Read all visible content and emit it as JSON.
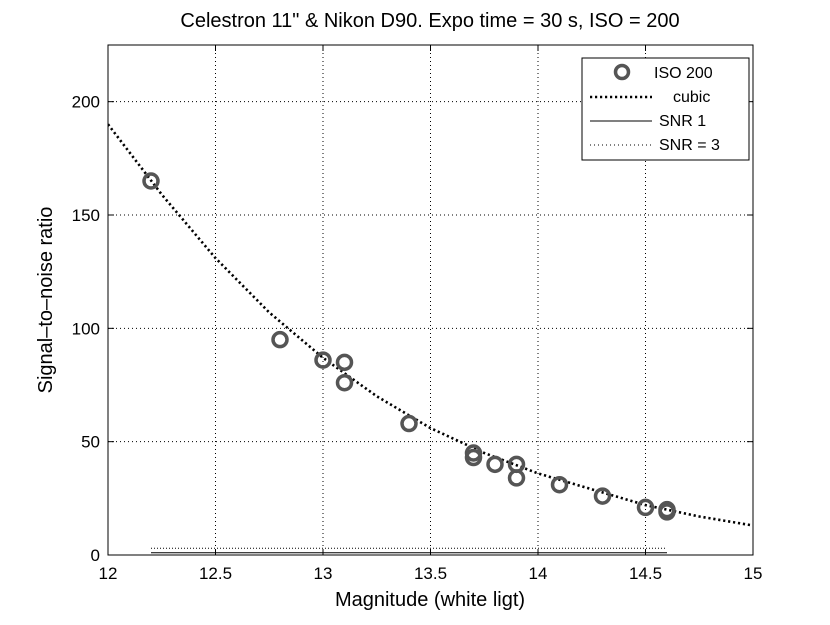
{
  "chart_data": {
    "type": "scatter",
    "title": "Celestron 11\" & Nikon D90. Expo time = 30 s, ISO = 200",
    "xlabel": "Magnitude (white ligt)",
    "ylabel": "Signal–to–noise ratio",
    "xlim": [
      12,
      15
    ],
    "ylim": [
      0,
      225
    ],
    "xticks": [
      12,
      12.5,
      13,
      13.5,
      14,
      14.5,
      15
    ],
    "xtick_labels": [
      "12",
      "12.5",
      "13",
      "13.5",
      "14",
      "14.5",
      "15"
    ],
    "yticks": [
      0,
      50,
      100,
      150,
      200
    ],
    "ytick_labels": [
      "0",
      "50",
      "100",
      "150",
      "200"
    ],
    "grid": true,
    "legend_position": "top-right",
    "series": [
      {
        "name": "ISO 200",
        "style": "circle-markers",
        "color": "#555555",
        "points": [
          {
            "x": 12.2,
            "y": 165
          },
          {
            "x": 12.8,
            "y": 95
          },
          {
            "x": 13.0,
            "y": 86
          },
          {
            "x": 13.1,
            "y": 85
          },
          {
            "x": 13.1,
            "y": 76
          },
          {
            "x": 13.4,
            "y": 58
          },
          {
            "x": 13.7,
            "y": 45
          },
          {
            "x": 13.7,
            "y": 43
          },
          {
            "x": 13.8,
            "y": 40
          },
          {
            "x": 13.9,
            "y": 40
          },
          {
            "x": 13.9,
            "y": 34
          },
          {
            "x": 14.1,
            "y": 31
          },
          {
            "x": 14.3,
            "y": 26
          },
          {
            "x": 14.5,
            "y": 21
          },
          {
            "x": 14.6,
            "y": 20
          },
          {
            "x": 14.6,
            "y": 19
          }
        ]
      },
      {
        "name": "cubic",
        "style": "dotted-thick",
        "color": "#000000",
        "x": [
          12.0,
          12.25,
          12.5,
          12.75,
          13.0,
          13.25,
          13.5,
          13.75,
          14.0,
          14.25,
          14.5,
          14.75,
          15.0
        ],
        "y": [
          190,
          159,
          131,
          107,
          87,
          70,
          56,
          45,
          36,
          29,
          22,
          17,
          13
        ]
      },
      {
        "name": "SNR 1",
        "style": "solid",
        "color": "#000000",
        "x": [
          12.2,
          14.6
        ],
        "y": [
          1,
          1
        ]
      },
      {
        "name": "SNR = 3",
        "style": "dotted",
        "color": "#000000",
        "x": [
          12.2,
          14.6
        ],
        "y": [
          3,
          3
        ]
      }
    ]
  }
}
